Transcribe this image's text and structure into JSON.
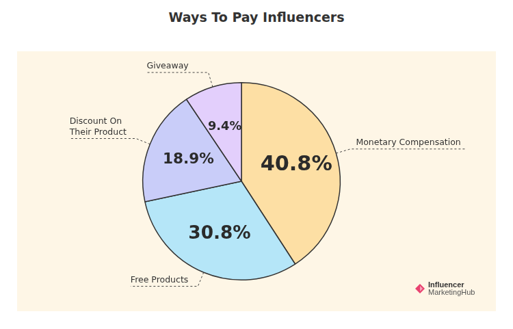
{
  "chart_data": {
    "type": "pie",
    "title": "Ways To Pay Influencers",
    "categories": [
      "Monetary Compensation",
      "Free Products",
      "Discount On Their Product",
      "Giveaway"
    ],
    "values": [
      40.8,
      30.8,
      18.9,
      9.4
    ],
    "value_labels": [
      "40.8%",
      "30.8%",
      "18.9%",
      "9.4%"
    ],
    "colors": [
      "#fddfa4",
      "#b5e6f8",
      "#c9cdf9",
      "#e3cffc"
    ],
    "data_labels": true,
    "annotations": [
      "Influencer",
      "MarketingHub"
    ]
  }
}
